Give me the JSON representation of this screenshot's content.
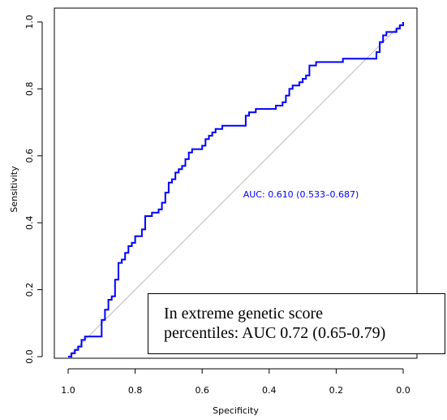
{
  "chart_data": {
    "type": "line",
    "xlabel": "Specificity",
    "ylabel": "Sensitivity",
    "xlim": [
      1.0,
      0.0
    ],
    "ylim": [
      0.0,
      1.0
    ],
    "x_reversed": true,
    "xticks": [
      "1.0",
      "0.8",
      "0.6",
      "0.4",
      "0.2",
      "0.0"
    ],
    "yticks": [
      "0.0",
      "0.2",
      "0.4",
      "0.6",
      "0.8",
      "1.0"
    ],
    "grid": false,
    "series": [
      {
        "color": "#0000ff",
        "x": [
          1.0,
          0.99,
          0.98,
          0.97,
          0.96,
          0.95,
          0.9,
          0.9,
          0.89,
          0.88,
          0.87,
          0.86,
          0.85,
          0.84,
          0.83,
          0.82,
          0.81,
          0.8,
          0.79,
          0.78,
          0.77,
          0.75,
          0.73,
          0.72,
          0.71,
          0.7,
          0.69,
          0.68,
          0.67,
          0.66,
          0.65,
          0.64,
          0.63,
          0.62,
          0.6,
          0.59,
          0.58,
          0.57,
          0.56,
          0.55,
          0.54,
          0.52,
          0.5,
          0.47,
          0.46,
          0.45,
          0.44,
          0.42,
          0.4,
          0.38,
          0.36,
          0.35,
          0.34,
          0.33,
          0.32,
          0.31,
          0.3,
          0.29,
          0.28,
          0.26,
          0.25,
          0.22,
          0.2,
          0.18,
          0.15,
          0.12,
          0.09,
          0.08,
          0.07,
          0.06,
          0.05,
          0.04,
          0.02,
          0.01,
          0.0
        ],
        "y": [
          0.0,
          0.01,
          0.02,
          0.03,
          0.05,
          0.06,
          0.06,
          0.11,
          0.14,
          0.17,
          0.18,
          0.23,
          0.28,
          0.29,
          0.31,
          0.33,
          0.34,
          0.36,
          0.36,
          0.38,
          0.42,
          0.43,
          0.44,
          0.46,
          0.49,
          0.52,
          0.53,
          0.55,
          0.56,
          0.57,
          0.59,
          0.61,
          0.62,
          0.62,
          0.63,
          0.65,
          0.66,
          0.67,
          0.68,
          0.68,
          0.69,
          0.69,
          0.69,
          0.72,
          0.73,
          0.73,
          0.74,
          0.74,
          0.74,
          0.75,
          0.76,
          0.78,
          0.8,
          0.81,
          0.81,
          0.82,
          0.83,
          0.84,
          0.87,
          0.88,
          0.88,
          0.88,
          0.88,
          0.89,
          0.89,
          0.89,
          0.89,
          0.91,
          0.94,
          0.96,
          0.97,
          0.97,
          0.98,
          0.99,
          1.0
        ]
      }
    ],
    "reference_line": {
      "x": [
        1.0,
        0.0
      ],
      "y": [
        0.0,
        1.0
      ],
      "color": "#bbbbbb"
    },
    "annotations": [
      {
        "text": "AUC: 0.610 (0.533–0.687)",
        "color": "#0000ff"
      }
    ]
  },
  "annotation_box": {
    "line1": "In extreme genetic score",
    "line2": "percentiles: AUC 0.72 (0.65-0.79)"
  }
}
